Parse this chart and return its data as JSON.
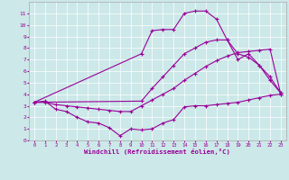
{
  "xlabel": "Windchill (Refroidissement éolien,°C)",
  "background_color": "#cce8e8",
  "line_color": "#990099",
  "xlim": [
    -0.5,
    23.5
  ],
  "ylim": [
    0,
    12
  ],
  "xticks": [
    0,
    1,
    2,
    3,
    4,
    5,
    6,
    7,
    8,
    9,
    10,
    11,
    12,
    13,
    14,
    15,
    16,
    17,
    18,
    19,
    20,
    21,
    22,
    23
  ],
  "yticks": [
    0,
    1,
    2,
    3,
    4,
    5,
    6,
    7,
    8,
    9,
    10,
    11
  ],
  "s1_x": [
    0,
    1,
    2,
    3,
    4,
    5,
    6,
    7,
    8,
    9,
    10,
    11,
    12,
    13,
    14,
    15,
    16,
    17,
    18,
    19,
    20,
    21,
    22,
    23
  ],
  "s1_y": [
    3.3,
    3.4,
    2.7,
    2.5,
    2.0,
    1.6,
    1.5,
    1.1,
    0.4,
    1.0,
    0.9,
    1.0,
    1.5,
    1.8,
    2.9,
    3.0,
    3.0,
    3.1,
    3.2,
    3.3,
    3.5,
    3.7,
    3.9,
    4.0
  ],
  "s2_x": [
    0,
    1,
    2,
    3,
    4,
    5,
    6,
    7,
    8,
    9,
    10,
    11,
    12,
    13,
    14,
    15,
    16,
    17,
    18,
    19,
    20,
    21,
    22,
    23
  ],
  "s2_y": [
    3.3,
    3.3,
    3.1,
    3.0,
    2.9,
    2.8,
    2.7,
    2.6,
    2.5,
    2.5,
    3.0,
    3.5,
    4.0,
    4.5,
    5.2,
    5.8,
    6.4,
    6.9,
    7.3,
    7.6,
    7.7,
    7.8,
    7.9,
    4.0
  ],
  "s3_x": [
    0,
    10,
    11,
    12,
    13,
    14,
    15,
    16,
    17,
    18,
    19,
    20,
    21,
    22,
    23
  ],
  "s3_y": [
    3.3,
    7.5,
    9.5,
    9.6,
    9.6,
    11.0,
    11.2,
    11.2,
    10.5,
    8.7,
    7.0,
    7.5,
    6.5,
    5.2,
    4.1
  ],
  "s4_x": [
    0,
    10,
    11,
    12,
    13,
    14,
    15,
    16,
    17,
    18,
    19,
    20,
    21,
    22,
    23
  ],
  "s4_y": [
    3.3,
    3.4,
    4.5,
    5.5,
    6.5,
    7.5,
    8.0,
    8.5,
    8.7,
    8.7,
    7.5,
    7.2,
    6.5,
    5.5,
    4.1
  ]
}
